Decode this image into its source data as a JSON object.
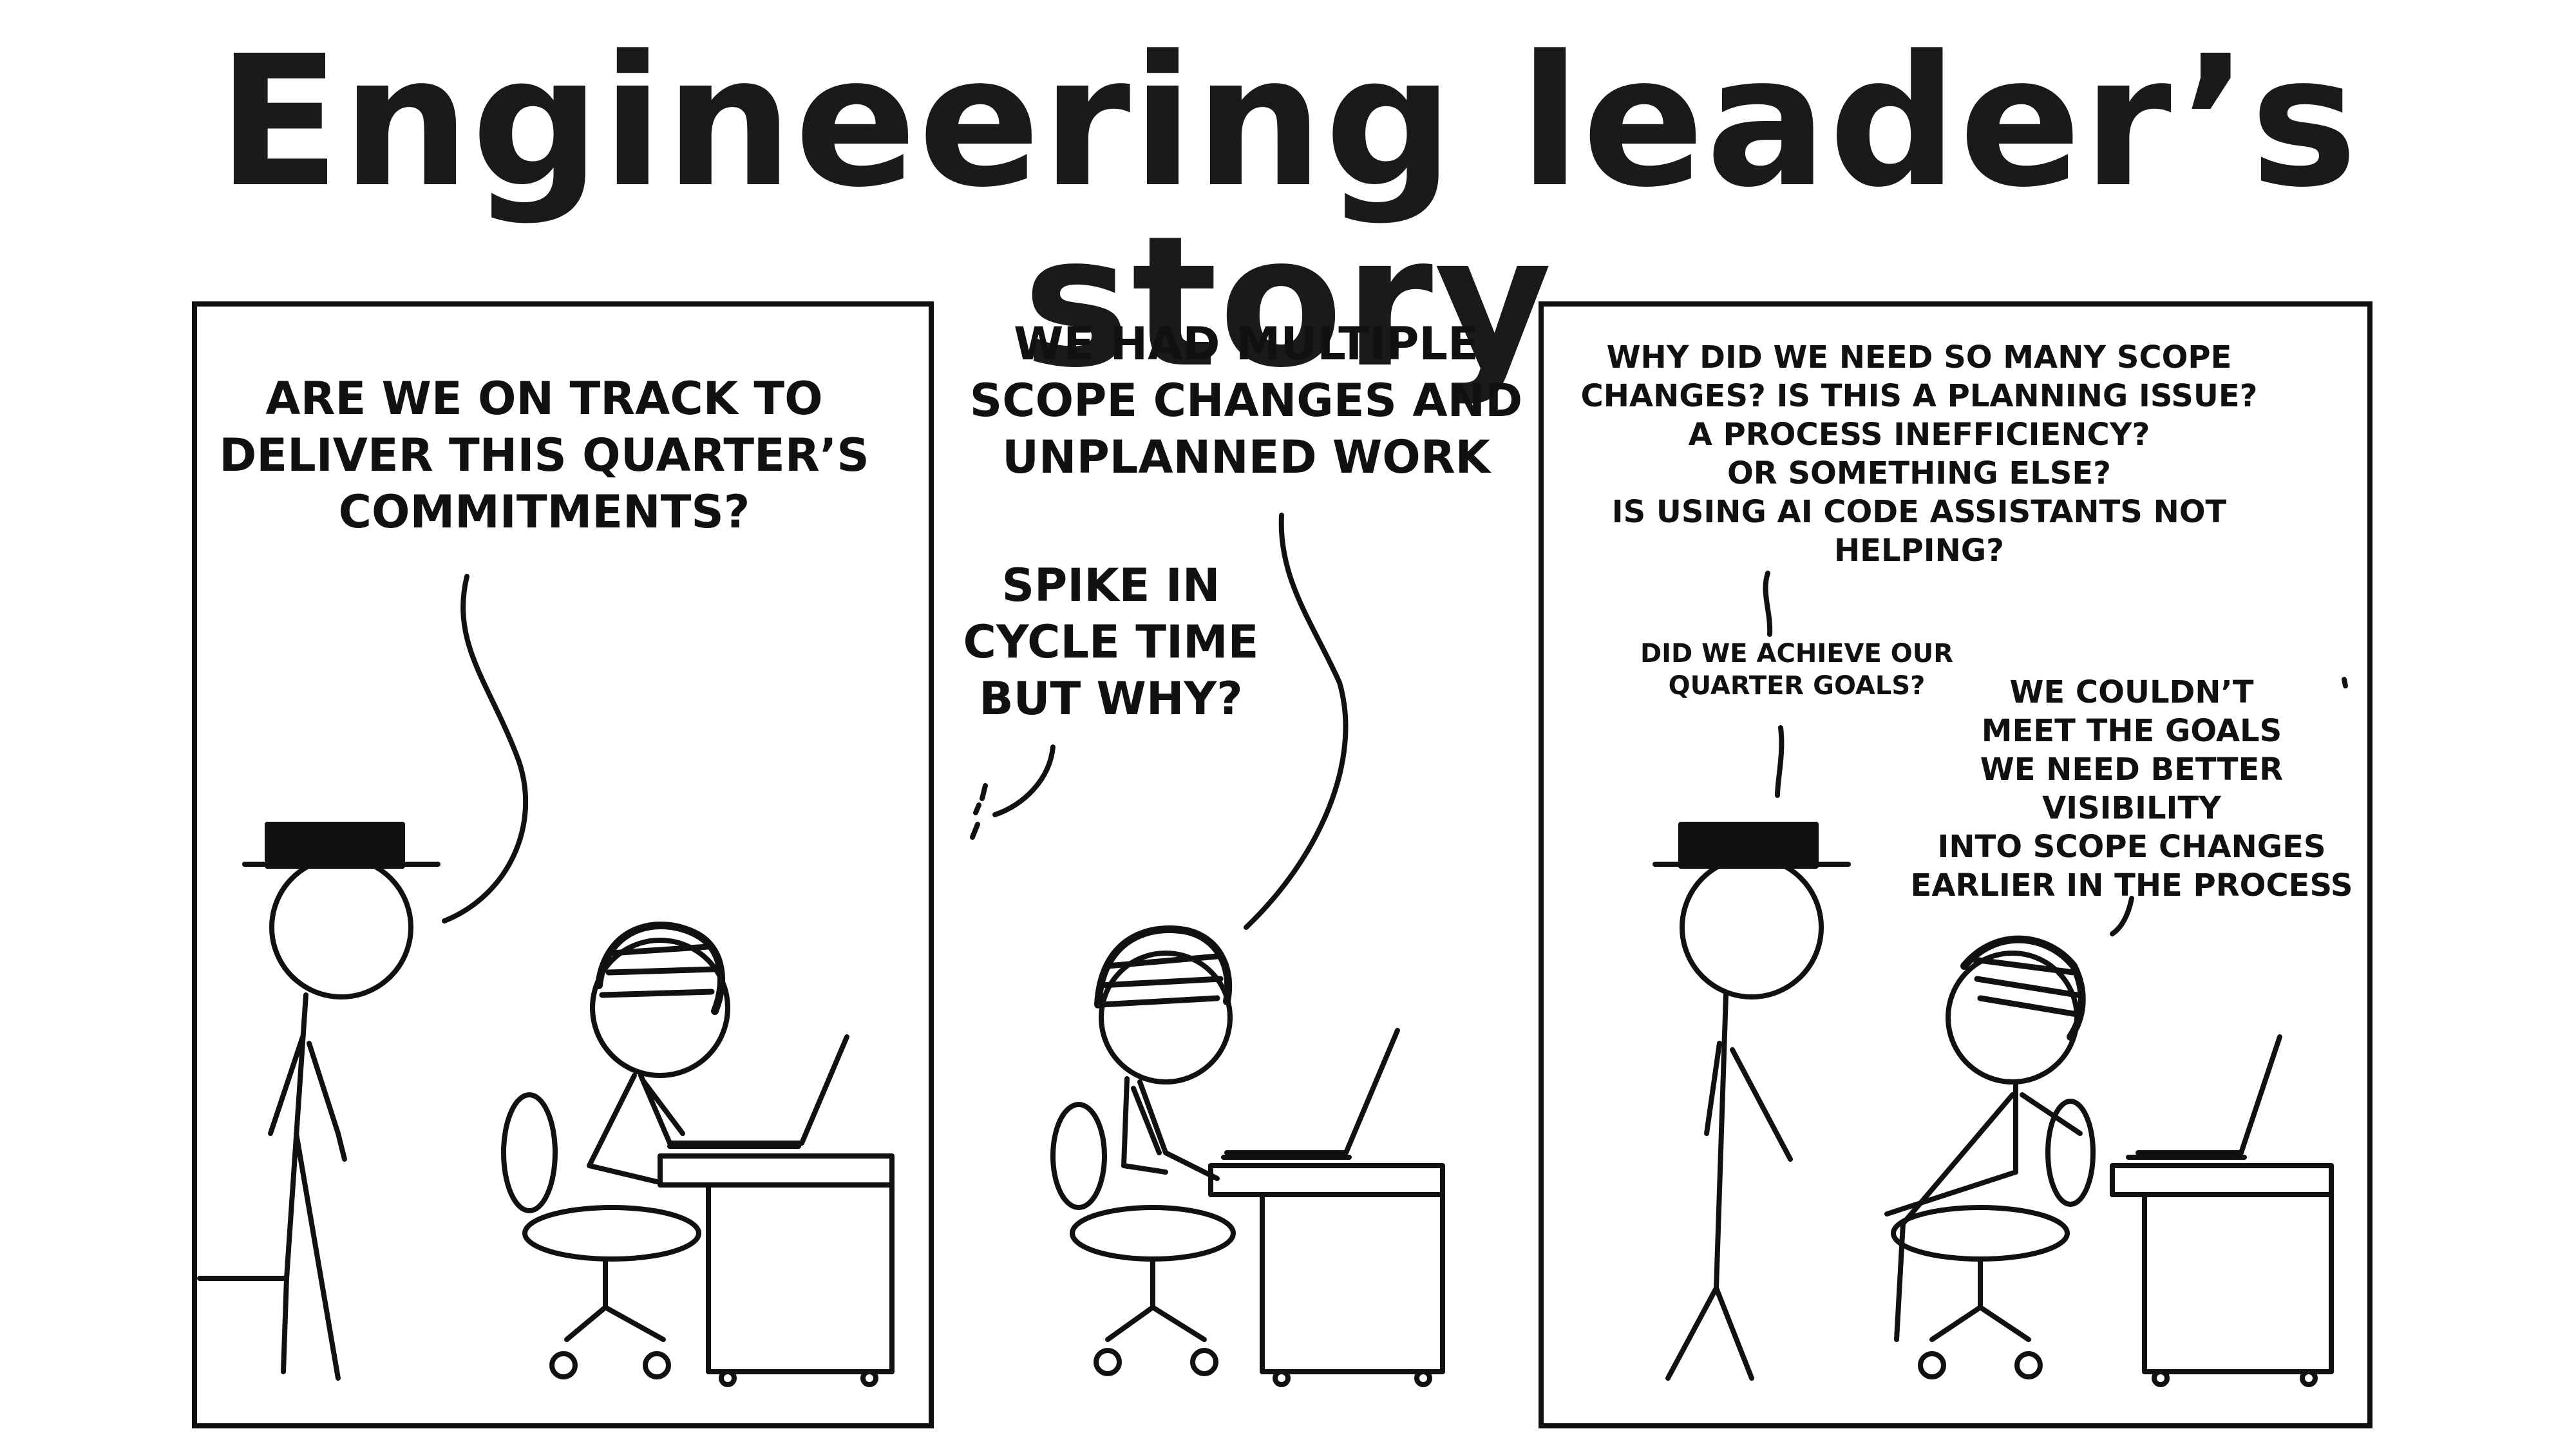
{
  "title": "Engineering leader’s story",
  "panels": [
    {
      "captions": {
        "question": "ARE WE ON TRACK TO\nDELIVER THIS QUARTER’S\nCOMMITMENTS?"
      }
    },
    {
      "captions": {
        "answer": "WE HAD MULTIPLE\nSCOPE CHANGES AND\nUNPLANNED WORK",
        "thought": "SPIKE IN\nCYCLE TIME\nBUT WHY?"
      }
    },
    {
      "captions": {
        "questions": "WHY DID WE NEED SO MANY SCOPE\nCHANGES? IS THIS A PLANNING ISSUE?\nA PROCESS INEFFICIENCY?\nOR SOMETHING ELSE?\nIS USING AI CODE ASSISTANTS NOT\nHELPING?",
        "goals_question": "DID WE ACHIEVE OUR\nQUARTER GOALS?",
        "goals_answer": "WE COULDN’T\nMEET THE GOALS\nWE NEED BETTER VISIBILITY\nINTO SCOPE CHANGES\nEARLIER IN THE PROCESS"
      }
    }
  ]
}
